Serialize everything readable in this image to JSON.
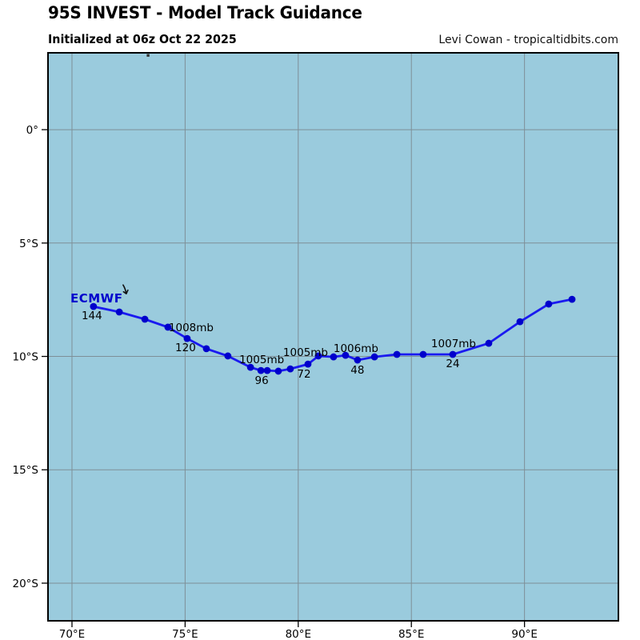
{
  "header": {
    "title": "95S INVEST - Model Track Guidance",
    "subtitle": "Initialized at 06z Oct 22 2025",
    "credit": "Levi Cowan - tropicaltidbits.com"
  },
  "colors": {
    "ocean": "#9acbdd",
    "grid": "#7e8f97",
    "border": "#000000",
    "track_line": "#1a1af0",
    "track_dot": "#0000cc",
    "model_label": "#0000cc",
    "annotation_text": "#000000",
    "tick_text": "#000000",
    "stray_mark": "#333333",
    "arrow_icon": "#111111"
  },
  "chart_data": {
    "type": "line",
    "title": "95S INVEST - Model Track Guidance",
    "subtitle": "Initialized at 06z Oct 22 2025",
    "x_axis": {
      "range": [
        68.94,
        94.15
      ],
      "ticks": [
        70,
        75,
        80,
        85,
        90
      ],
      "tick_labels": [
        "70°E",
        "75°E",
        "80°E",
        "85°E",
        "90°E"
      ]
    },
    "y_axis": {
      "range": [
        -21.66,
        3.39
      ],
      "ticks": [
        0,
        -5,
        -10,
        -15,
        -20
      ],
      "tick_labels": [
        "0°",
        "5°S",
        "10°S",
        "15°S",
        "20°S"
      ]
    },
    "grid": true,
    "series": [
      {
        "name": "ECMWF",
        "hours": [
          0,
          6,
          12,
          18,
          24,
          30,
          36,
          42,
          48,
          54,
          60,
          66,
          72,
          78,
          84,
          90,
          96,
          102,
          108,
          114,
          120,
          126,
          132,
          138,
          144
        ],
        "points": [
          [
            92.1,
            -7.48
          ],
          [
            91.07,
            -7.69
          ],
          [
            89.8,
            -8.47
          ],
          [
            88.42,
            -9.42
          ],
          [
            86.83,
            -9.91
          ],
          [
            85.52,
            -9.91
          ],
          [
            84.36,
            -9.91
          ],
          [
            83.37,
            -10.02
          ],
          [
            82.62,
            -10.16
          ],
          [
            82.09,
            -9.95
          ],
          [
            81.56,
            -10.02
          ],
          [
            80.89,
            -9.98
          ],
          [
            80.43,
            -10.34
          ],
          [
            79.65,
            -10.55
          ],
          [
            79.12,
            -10.65
          ],
          [
            78.63,
            -10.62
          ],
          [
            78.35,
            -10.62
          ],
          [
            77.89,
            -10.48
          ],
          [
            76.89,
            -9.98
          ],
          [
            75.94,
            -9.66
          ],
          [
            75.09,
            -9.21
          ],
          [
            74.24,
            -8.71
          ],
          [
            73.22,
            -8.36
          ],
          [
            72.09,
            -8.04
          ],
          [
            70.95,
            -7.8
          ]
        ],
        "hour_labels": [
          {
            "text": "24",
            "index": 4,
            "dx": 0,
            "dy": 16
          },
          {
            "text": "48",
            "index": 8,
            "dx": 0,
            "dy": 17
          },
          {
            "text": "72",
            "index": 12,
            "dx": -5,
            "dy": 17
          },
          {
            "text": "96",
            "index": 16,
            "dx": 1,
            "dy": 17
          },
          {
            "text": "120",
            "index": 20,
            "dx": -2,
            "dy": 16
          },
          {
            "text": "144",
            "index": 24,
            "dx": -2,
            "dy": 16
          }
        ],
        "pressure_labels": [
          {
            "text": "1007mb",
            "index": 4,
            "dx": 1,
            "dy": -9,
            "anchor": "middle"
          },
          {
            "text": "1006mb",
            "index": 8,
            "dx": -2,
            "dy": -10,
            "anchor": "middle"
          },
          {
            "text": "1005mb",
            "index": 12,
            "dx": -3,
            "dy": -10,
            "anchor": "middle"
          },
          {
            "text": "1005mb",
            "index": 16,
            "dx": 1,
            "dy": -9,
            "anchor": "middle"
          },
          {
            "text": "1008mb",
            "index": 21,
            "dx": 1,
            "dy": 5,
            "anchor": "start"
          }
        ],
        "model_label": {
          "text": "ECMWF",
          "lon": 69.93,
          "lat": -7.44
        },
        "cursor_arrow": {
          "lon": 72.33,
          "lat": -7.06
        },
        "stray_mark": {
          "lon": 73.36,
          "lat": 3.28
        }
      }
    ]
  }
}
